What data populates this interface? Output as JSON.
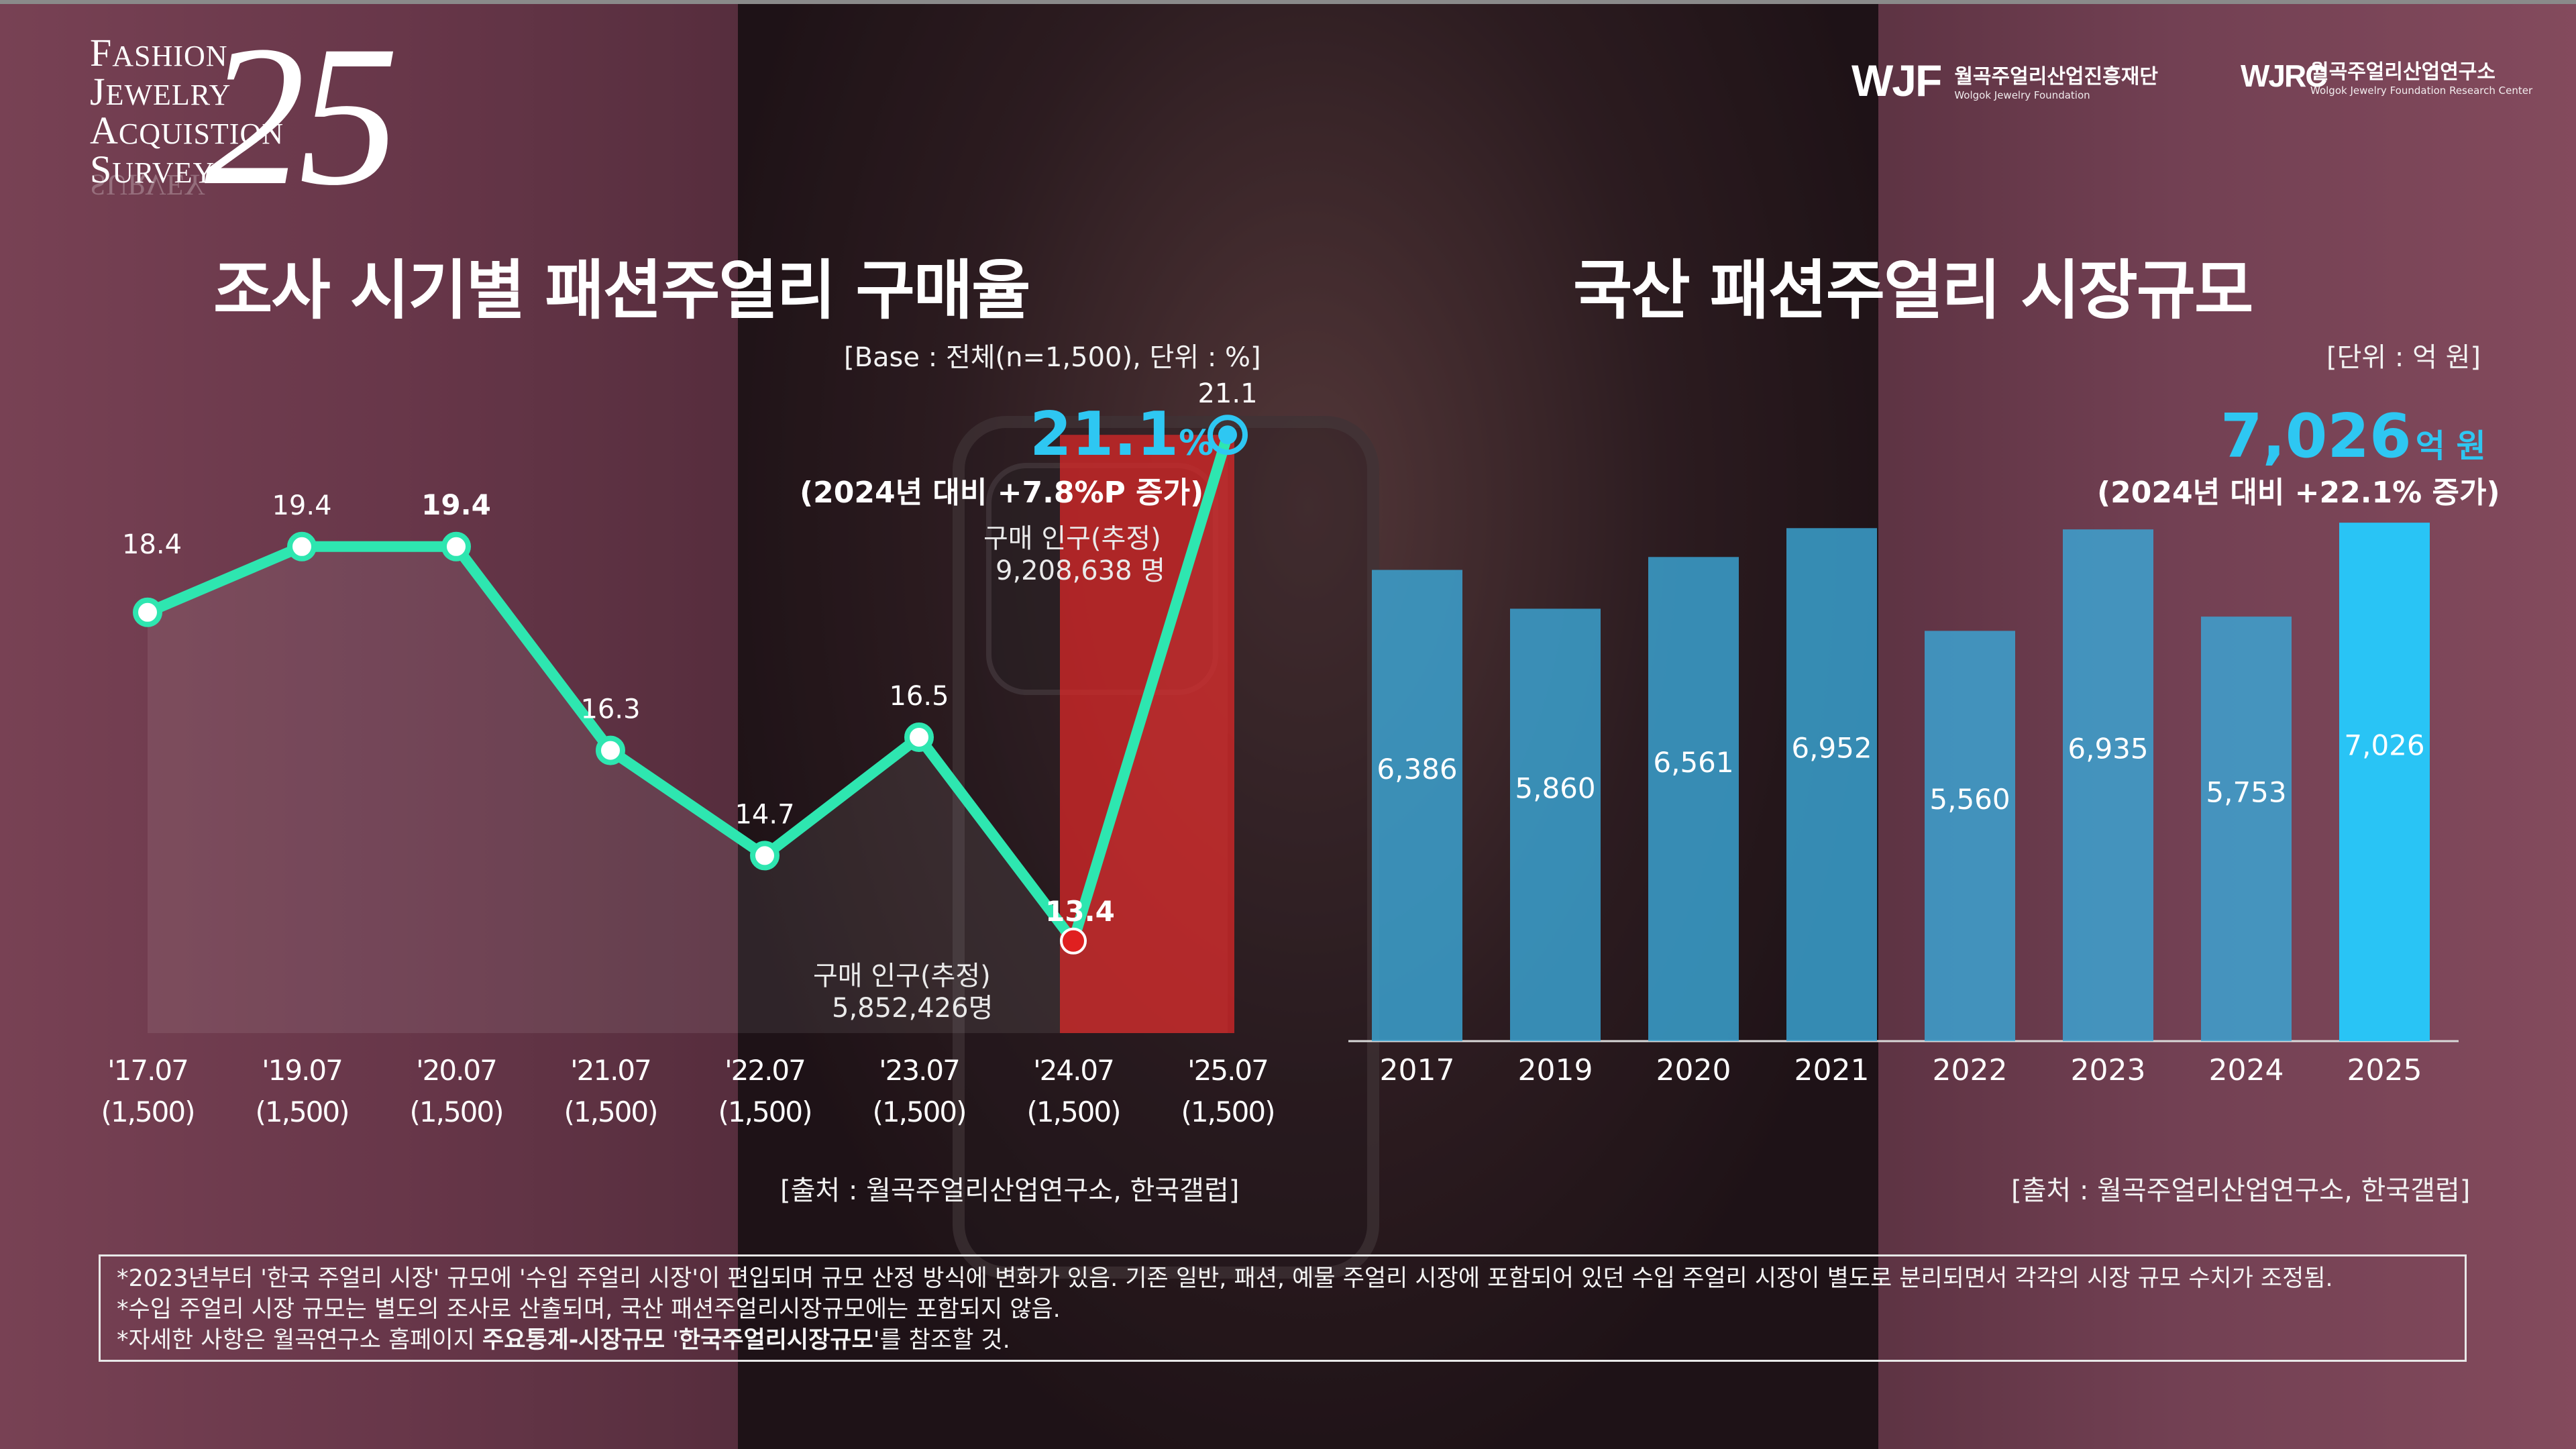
{
  "logo": {
    "words": [
      {
        "cap": "F",
        "rest": "ASHION"
      },
      {
        "cap": "J",
        "rest": "EWELRY"
      },
      {
        "cap": "A",
        "rest": "CQUISTION"
      },
      {
        "cap": "S",
        "rest": "URVEY"
      }
    ],
    "reflection": "SURVEY",
    "number": "25"
  },
  "orgs": [
    {
      "mark": "WJF",
      "name_ko": "월곡주얼리산업진흥재단",
      "name_en": "Wolgok Jewelry Foundation"
    },
    {
      "mark": "WJRC",
      "name_ko": "월곡주얼리산업연구소",
      "name_en": "Wolgok Jewelry Foundation Research Center"
    }
  ],
  "left": {
    "title": "조사 시기별 패션주얼리 구매율",
    "base_note": "[Base : 전체(n=1,500), 단위 : %]",
    "highlight_value": "21.1",
    "highlight_unit": "%",
    "highlight_sub": "(2024년 대비 +7.8%P 증가)",
    "pop_2025_label": "구매 인구(추정)",
    "pop_2025_value": "9,208,638 명",
    "pop_2024_label": "구매 인구(추정)",
    "pop_2024_value": "5,852,426명",
    "source": "[출처 : 월곡주얼리산업연구소, 한국갤럽]"
  },
  "right": {
    "title": "국산 패션주얼리 시장규모",
    "unit_note": "[단위 : 억 원]",
    "highlight_value": "7,026",
    "highlight_unit": "억 원",
    "highlight_sub": "(2024년 대비 +22.1% 증가)",
    "source": "[출처 : 월곡주얼리산업연구소, 한국갤럽]"
  },
  "chart_data": [
    {
      "type": "line",
      "title": "조사 시기별 패션주얼리 구매율",
      "x": [
        "'17.07",
        "'19.07",
        "'20.07",
        "'21.07",
        "'22.07",
        "'23.07",
        "'24.07",
        "'25.07"
      ],
      "x_sub": [
        "(1,500)",
        "(1,500)",
        "(1,500)",
        "(1,500)",
        "(1,500)",
        "(1,500)",
        "(1,500)",
        "(1,500)"
      ],
      "series": [
        {
          "values": [
            18.4,
            19.4,
            19.4,
            16.3,
            14.7,
            16.5,
            13.4,
            21.1
          ],
          "color": "#2ee6b0"
        }
      ],
      "bold_labels": [
        "'20.07",
        "'24.07"
      ],
      "highlight_color": "#2ec7f2",
      "ylim": [
        12,
        22
      ]
    },
    {
      "type": "bar",
      "title": "국산 패션주얼리 시장규모",
      "categories": [
        "2017",
        "2019",
        "2020",
        "2021",
        "2022",
        "2023",
        "2024",
        "2025"
      ],
      "values": [
        6386,
        5860,
        6561,
        6952,
        5560,
        6935,
        5753,
        7026
      ],
      "value_labels": [
        "6,386",
        "5,860",
        "6,561",
        "6,952",
        "5,560",
        "6,935",
        "5,753",
        "7,026"
      ],
      "bar_color": "#3aa6d6",
      "highlight_color": "#29c4f5",
      "ylim": [
        0,
        7200
      ]
    }
  ],
  "footnote": {
    "line1": "*2023년부터 '한국 주얼리 시장' 규모에 '수입 주얼리 시장'이 편입되며 규모 산정 방식에 변화가 있음. 기존 일반, 패션, 예물 주얼리 시장에 포함되어 있던 수입 주얼리  시장이 별도로 분리되면서 각각의 시장 규모 수치가 조정됨.",
    "line2": "*수입 주얼리 시장 규모는 별도의 조사로 산출되며, 국산 패션주얼리시장규모에는 포함되지 않음.",
    "line3_pre": "*자세한 사항은 월곡연구소 홈페이지 ",
    "line3_b1": "주요통계-시장규모",
    "line3_mid": " '",
    "line3_b2": "한국주얼리시장규모",
    "line3_post": "'를 참조할 것."
  }
}
